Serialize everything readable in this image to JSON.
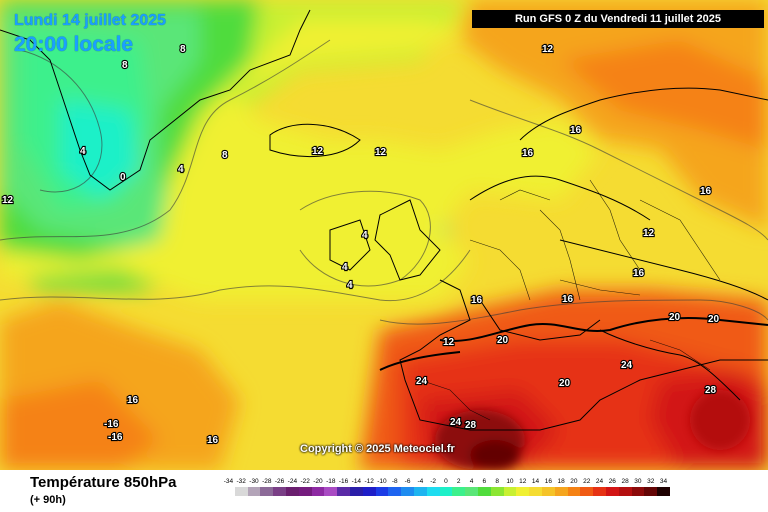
{
  "header": {
    "valid_date": "Lundi 14 juillet 2025",
    "valid_time": "20:00 locale",
    "run_info": "Run GFS 0 Z du Vendredi 11 juillet 2025"
  },
  "copyright": "Copyright © 2025 Meteociel.fr",
  "footer": {
    "parameter": "Température 850hPa",
    "lead_time": "(+ 90h)"
  },
  "scale": [
    {
      "value": "-34",
      "color": "#ffffff"
    },
    {
      "value": "-32",
      "color": "#d9d9d9"
    },
    {
      "value": "-30",
      "color": "#b3a4b8"
    },
    {
      "value": "-28",
      "color": "#8c6a98"
    },
    {
      "value": "-26",
      "color": "#7a3f86"
    },
    {
      "value": "-24",
      "color": "#6a1f6e"
    },
    {
      "value": "-22",
      "color": "#751c7e"
    },
    {
      "value": "-20",
      "color": "#8e2aa3"
    },
    {
      "value": "-18",
      "color": "#a94bc3"
    },
    {
      "value": "-16",
      "color": "#5a2aa6"
    },
    {
      "value": "-14",
      "color": "#2a1ea8"
    },
    {
      "value": "-12",
      "color": "#1e1ec8"
    },
    {
      "value": "-10",
      "color": "#1c3ce6"
    },
    {
      "value": "-8",
      "color": "#1e64f0"
    },
    {
      "value": "-6",
      "color": "#1e8cf0"
    },
    {
      "value": "-4",
      "color": "#1eb4f0"
    },
    {
      "value": "-2",
      "color": "#1edcf0"
    },
    {
      "value": "0",
      "color": "#1ef0c8"
    },
    {
      "value": "2",
      "color": "#3cf08c"
    },
    {
      "value": "4",
      "color": "#5ae678"
    },
    {
      "value": "6",
      "color": "#50dc3c"
    },
    {
      "value": "8",
      "color": "#8ce632"
    },
    {
      "value": "10",
      "color": "#c8f032"
    },
    {
      "value": "12",
      "color": "#f0f032"
    },
    {
      "value": "14",
      "color": "#f5dc32"
    },
    {
      "value": "16",
      "color": "#f5c328"
    },
    {
      "value": "18",
      "color": "#f5a51e"
    },
    {
      "value": "20",
      "color": "#f58214"
    },
    {
      "value": "22",
      "color": "#f05a14"
    },
    {
      "value": "24",
      "color": "#e63214"
    },
    {
      "value": "26",
      "color": "#d21414"
    },
    {
      "value": "28",
      "color": "#b40f0f"
    },
    {
      "value": "30",
      "color": "#8c0a0a"
    },
    {
      "value": "32",
      "color": "#640505"
    },
    {
      "value": "34",
      "color": "#1e0000"
    }
  ],
  "map_labels": [
    "8",
    "8",
    "8",
    "12",
    "12",
    "12",
    "12",
    "12",
    "16",
    "16",
    "16",
    "16",
    "16",
    "16",
    "4",
    "4",
    "4",
    "4",
    "4",
    "0",
    "24",
    "24",
    "24",
    "28",
    "28",
    "20",
    "20",
    "20",
    "20",
    "-16",
    "-16",
    "16",
    "16",
    "12"
  ]
}
